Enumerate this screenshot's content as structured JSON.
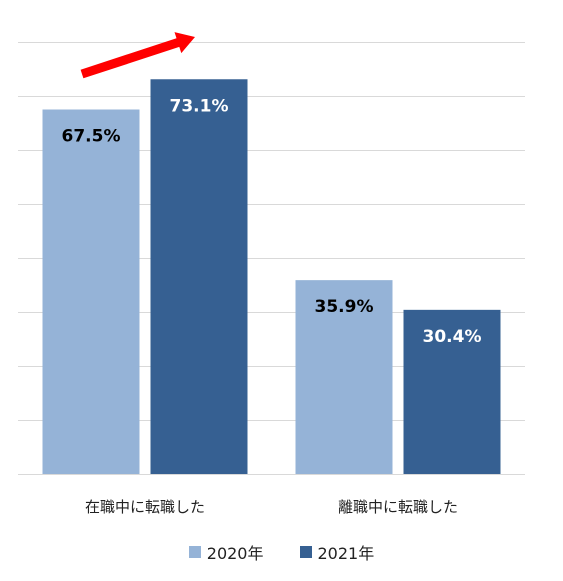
{
  "chart_data": {
    "type": "bar",
    "categories": [
      "在職中に転職した",
      "離職中に転職した"
    ],
    "series": [
      {
        "name": "2020年",
        "values": [
          67.5,
          35.9
        ],
        "color": "#95b3d7",
        "label_color": "#000000"
      },
      {
        "name": "2021年",
        "values": [
          73.1,
          30.4
        ],
        "color": "#366092",
        "label_color": "#ffffff"
      }
    ],
    "value_labels": [
      [
        "67.5%",
        "35.9%"
      ],
      [
        "73.1%",
        "30.4%"
      ]
    ],
    "ylim": [
      0,
      80
    ],
    "grid": true,
    "legend": "bottom",
    "annotation": "red upward arrow above 在職中に転職した bars",
    "arrow_color": "#ff0000"
  }
}
